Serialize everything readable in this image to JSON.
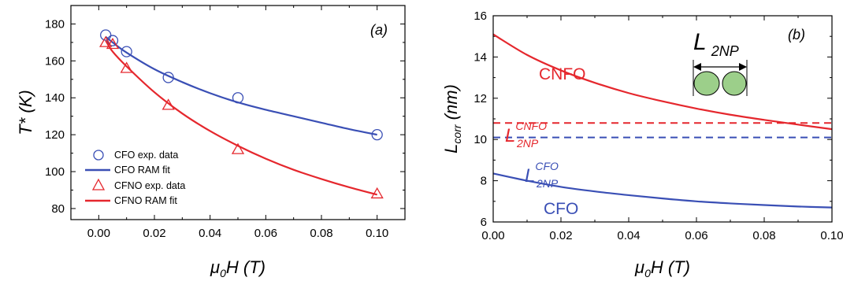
{
  "chart_data": [
    {
      "type": "scatter",
      "panel_label": "(a)",
      "xlabel": {
        "main": "μ",
        "sub": "0",
        "rest": "H (T)"
      },
      "ylabel": "T* (K)",
      "xlim": [
        -0.01,
        0.11
      ],
      "ylim": [
        74,
        190
      ],
      "xticks": [
        0.0,
        0.02,
        0.04,
        0.06,
        0.08,
        0.1
      ],
      "xtick_labels": [
        "0.00",
        "0.02",
        "0.04",
        "0.06",
        "0.08",
        "0.10"
      ],
      "yticks": [
        80,
        100,
        120,
        140,
        160,
        180
      ],
      "ytick_labels": [
        "80",
        "100",
        "120",
        "140",
        "160",
        "180"
      ],
      "legend_position": "bottom-left",
      "series": [
        {
          "name": "CFO exp. data",
          "kind": "marker",
          "marker": "circle",
          "color": "#3a4fb5",
          "x": [
            0.0025,
            0.005,
            0.01,
            0.025,
            0.05,
            0.1
          ],
          "y": [
            174,
            171,
            165,
            151,
            140,
            120
          ]
        },
        {
          "name": "CFO RAM fit",
          "kind": "line",
          "color": "#3a4fb5",
          "x": [
            0.0025,
            0.005,
            0.01,
            0.02,
            0.03,
            0.04,
            0.05,
            0.06,
            0.07,
            0.08,
            0.09,
            0.1
          ],
          "y": [
            173,
            170,
            164.5,
            155.5,
            148.5,
            142.5,
            137.5,
            133.5,
            130,
            126.5,
            123,
            120
          ]
        },
        {
          "name": "CFNO exp. data",
          "kind": "marker",
          "marker": "triangle",
          "color": "#e5272d",
          "x": [
            0.0025,
            0.005,
            0.01,
            0.025,
            0.05,
            0.1
          ],
          "y": [
            170,
            169,
            156,
            136,
            112,
            88
          ]
        },
        {
          "name": "CFNO RAM fit",
          "kind": "line",
          "color": "#e5272d",
          "x": [
            0.0025,
            0.005,
            0.01,
            0.02,
            0.03,
            0.04,
            0.05,
            0.06,
            0.07,
            0.08,
            0.09,
            0.1
          ],
          "y": [
            171,
            165,
            157,
            143,
            131.5,
            122,
            114,
            107,
            101,
            96,
            91.5,
            87.5
          ]
        }
      ]
    },
    {
      "type": "line",
      "panel_label": "(b)",
      "xlabel": {
        "main": "μ",
        "sub": "0",
        "rest": "H (T)"
      },
      "ylabel": {
        "main": "L",
        "sub": "corr",
        "rest": " (nm)"
      },
      "xlim": [
        0.0,
        0.1
      ],
      "ylim": [
        6,
        16
      ],
      "xticks": [
        0.0,
        0.02,
        0.04,
        0.06,
        0.08,
        0.1
      ],
      "xtick_labels": [
        "0.00",
        "0.02",
        "0.04",
        "0.06",
        "0.08",
        "0.10"
      ],
      "yticks": [
        6,
        8,
        10,
        12,
        14,
        16
      ],
      "ytick_labels": [
        "6",
        "8",
        "10",
        "12",
        "14",
        "16"
      ],
      "series": [
        {
          "name": "CNFO",
          "kind": "line",
          "color": "#e5272d",
          "x": [
            0.0,
            0.01,
            0.02,
            0.03,
            0.04,
            0.05,
            0.06,
            0.07,
            0.08,
            0.09,
            0.1
          ],
          "y": [
            15.1,
            14.1,
            13.35,
            12.75,
            12.25,
            11.85,
            11.5,
            11.2,
            10.95,
            10.72,
            10.5
          ]
        },
        {
          "name": "CFO",
          "kind": "line",
          "color": "#3a4fb5",
          "x": [
            0.0,
            0.01,
            0.02,
            0.03,
            0.04,
            0.05,
            0.06,
            0.07,
            0.08,
            0.09,
            0.1
          ],
          "y": [
            8.35,
            8.0,
            7.7,
            7.48,
            7.3,
            7.14,
            7.0,
            6.9,
            6.82,
            6.75,
            6.7
          ]
        },
        {
          "kind": "hline",
          "color": "#e5272d",
          "y": 10.8
        },
        {
          "kind": "hline",
          "color": "#3a4fb5",
          "y": 10.1
        }
      ],
      "annotations": {
        "cnfo_label": "CNFO",
        "cfo_label": "CFO",
        "l2np_cnfo": {
          "main": "L",
          "sub": "2NP",
          "sup": "CNFO"
        },
        "l2np_cfo": {
          "main": "L",
          "sub": "2NP",
          "sup": "CFO"
        },
        "inset_label": {
          "main": "L",
          "sub": "2NP"
        }
      }
    }
  ],
  "colors": {
    "blue": "#3a4fb5",
    "red": "#e5272d",
    "particle": "#9ccf8a"
  }
}
